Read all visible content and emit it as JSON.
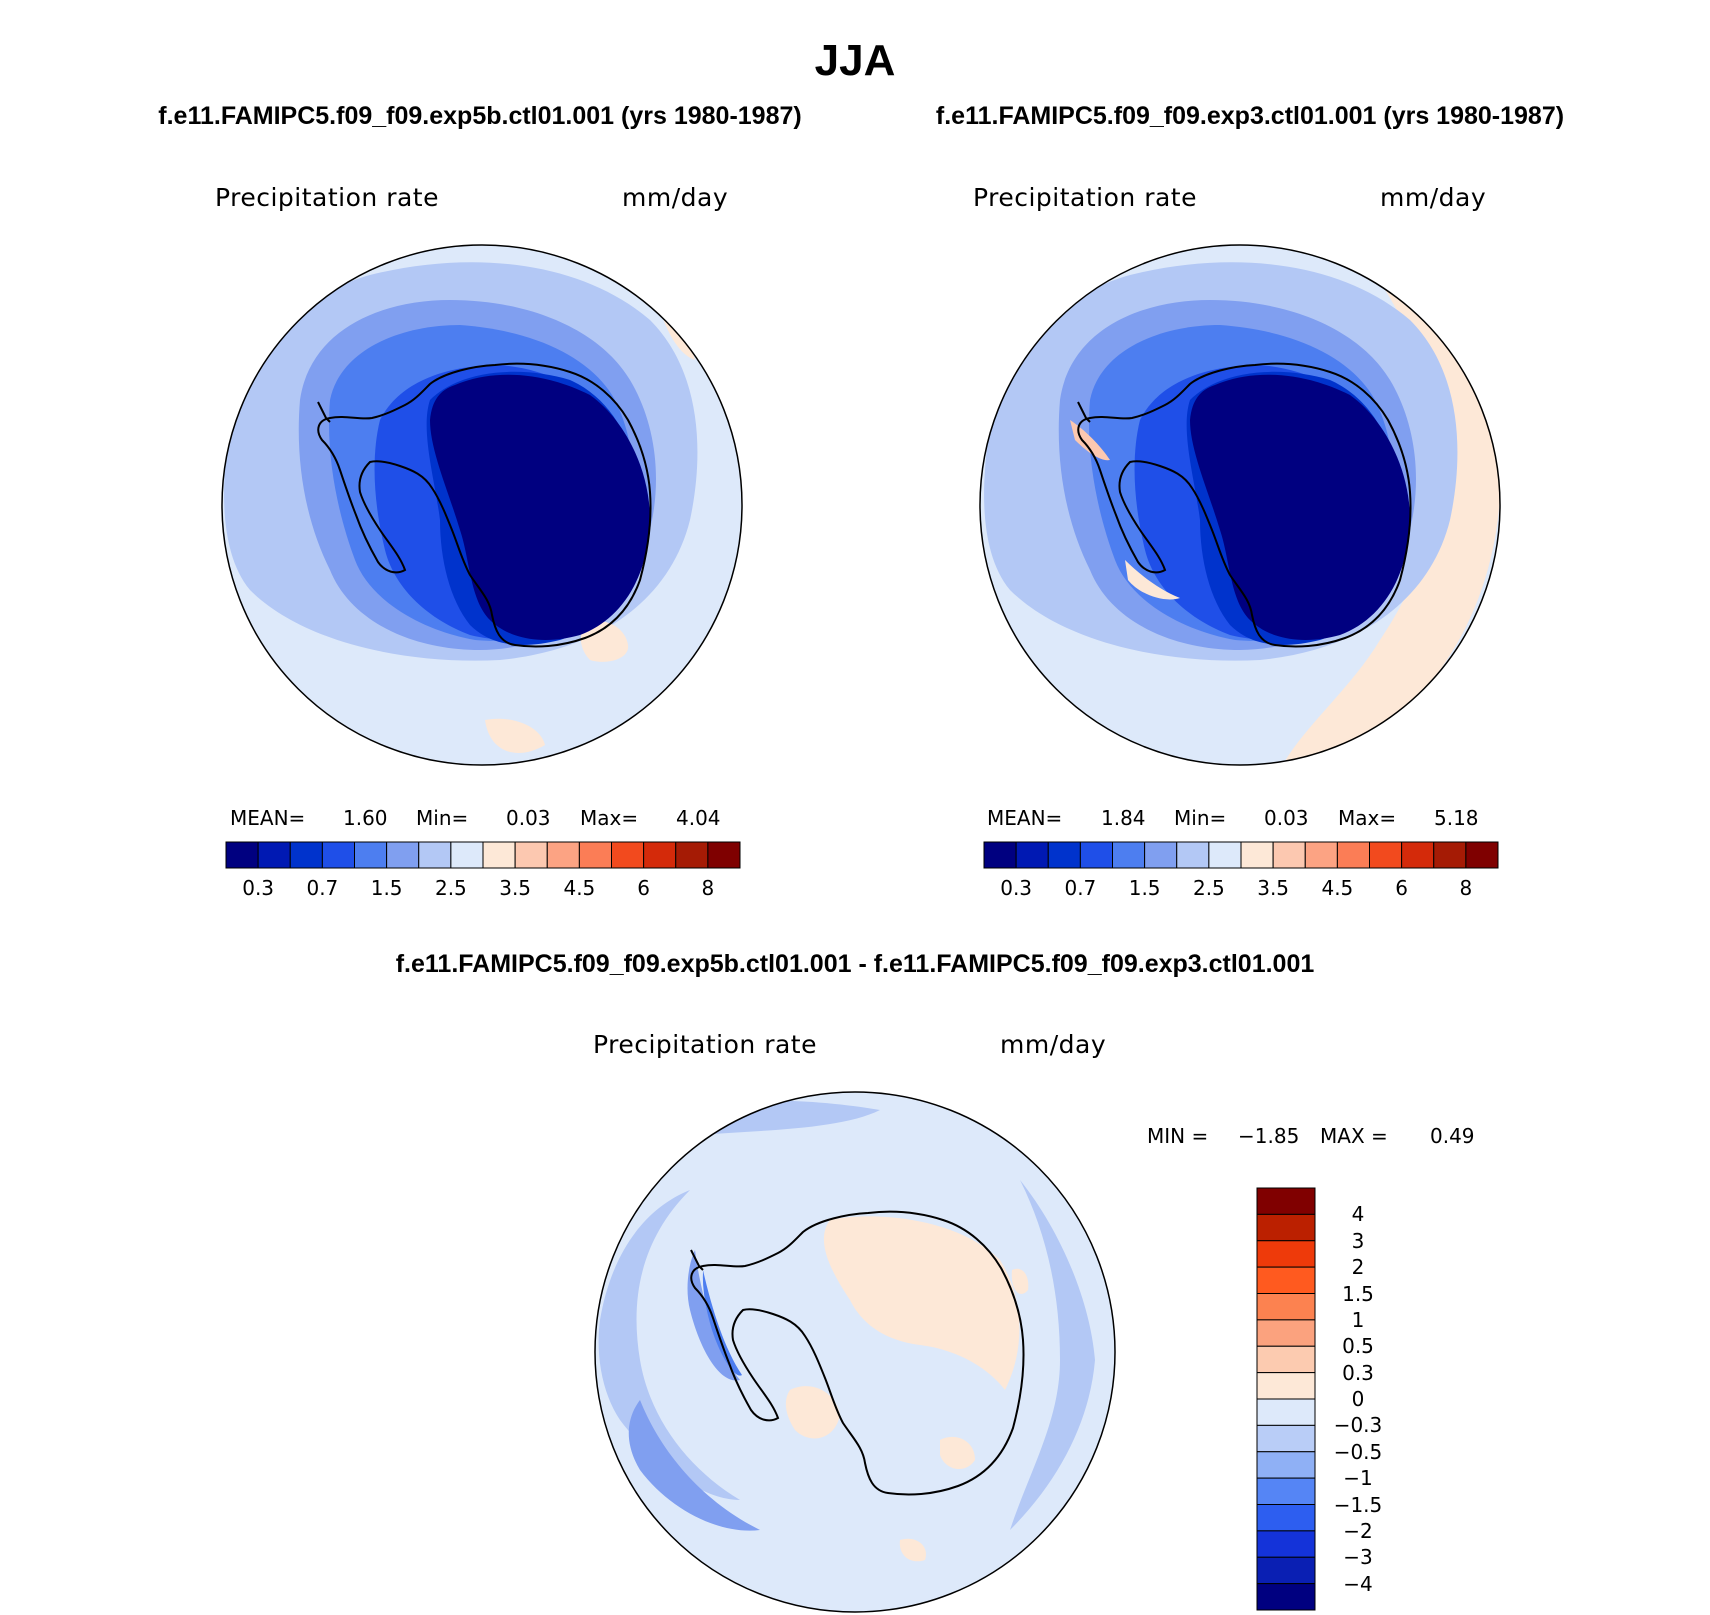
{
  "season": "JJA",
  "panels": [
    {
      "case_title": "f.e11.FAMIPC5.f09_f09.exp5b.ctl01.001 (yrs 1980-1987)",
      "variable": "Precipitation rate",
      "units": "mm/day",
      "stats": {
        "mean_label": "MEAN=",
        "mean": "1.60",
        "min_label": "Min=",
        "min": "0.03",
        "max_label": "Max=",
        "max": "4.04"
      }
    },
    {
      "case_title": "f.e11.FAMIPC5.f09_f09.exp3.ctl01.001 (yrs 1980-1987)",
      "variable": "Precipitation rate",
      "units": "mm/day",
      "stats": {
        "mean_label": "MEAN=",
        "mean": "1.84",
        "min_label": "Min=",
        "min": "0.03",
        "max_label": "Max=",
        "max": "5.18"
      }
    }
  ],
  "difference": {
    "title": "f.e11.FAMIPC5.f09_f09.exp5b.ctl01.001 - f.e11.FAMIPC5.f09_f09.exp3.ctl01.001",
    "variable": "Precipitation rate",
    "units": "mm/day",
    "stats": {
      "min_label": "MIN =",
      "min": "−1.85",
      "max_label": "MAX =",
      "max": "0.49"
    }
  },
  "abs_colorbar": {
    "colors": [
      "#000080",
      "#0019b3",
      "#0033cc",
      "#1f4fe8",
      "#4d7ef0",
      "#809ff0",
      "#b3c8f5",
      "#dde9fa",
      "#fde8d7",
      "#fcc8b0",
      "#fca383",
      "#fb7d56",
      "#f24a1e",
      "#d42a0a",
      "#a51b05",
      "#7f0000"
    ],
    "ticks": [
      "0.3",
      "0.7",
      "1.5",
      "2.5",
      "3.5",
      "4.5",
      "6",
      "8"
    ]
  },
  "diff_colorbar": {
    "colors_top_to_bottom": [
      "#800000",
      "#bb2000",
      "#ee3a0a",
      "#ff5a1f",
      "#fc8250",
      "#fba27e",
      "#fccbb0",
      "#fde8d7",
      "#dde9fa",
      "#b9cdf7",
      "#8fb0f5",
      "#5585f5",
      "#2d5ef0",
      "#1433d9",
      "#0a1fb3",
      "#000080"
    ],
    "ticks": [
      "4",
      "3",
      "2",
      "1.5",
      "1",
      "0.5",
      "0.3",
      "0",
      "−0.3",
      "−0.5",
      "−1",
      "−1.5",
      "−2",
      "−3",
      "−4"
    ]
  },
  "map_colors": {
    "ocean_light": "#dde9fa",
    "ocean_mid": "#b3c8f5",
    "ocean_blue": "#809ff0",
    "coast_blue": "#4d7ef0",
    "inner_blue": "#1f4fe8",
    "deep_blue": "#0033cc",
    "continent": "#000080",
    "warm": "#fde8d7",
    "warm2": "#fcc8b0"
  }
}
